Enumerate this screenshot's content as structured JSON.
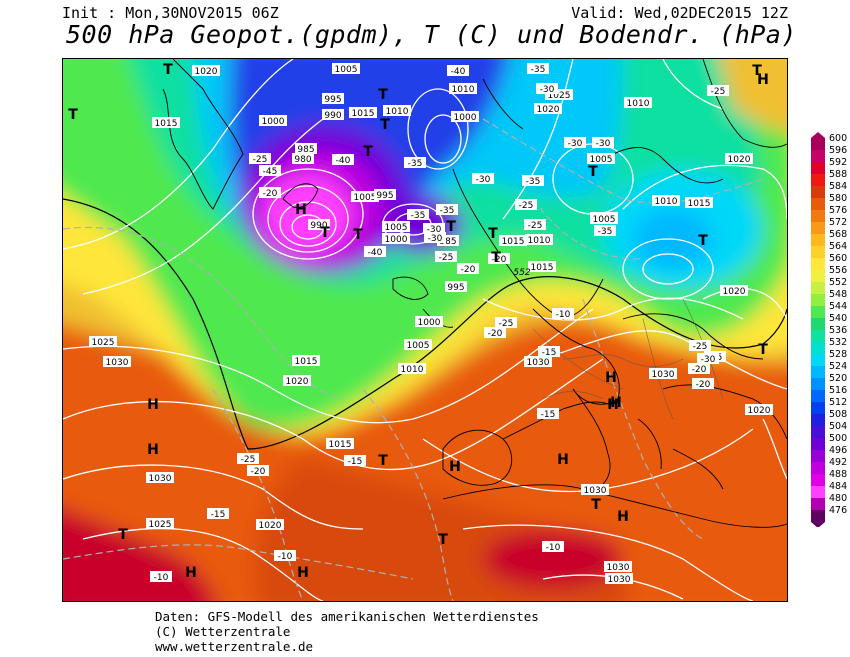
{
  "header": {
    "init": "Init : Mon,30NOV2015 06Z",
    "valid": "Valid: Wed,02DEC2015 12Z",
    "title": "500 hPa Geopot.(gpdm), T (C) und Bodendr. (hPa)"
  },
  "footer": {
    "line1": "Daten: GFS-Modell des amerikanischen Wetterdienstes",
    "line2": "(C) Wetterzentrale",
    "line3": "www.wetterzentrale.de"
  },
  "colorbar": {
    "labels": [
      "600",
      "596",
      "592",
      "588",
      "584",
      "580",
      "576",
      "572",
      "568",
      "564",
      "560",
      "556",
      "552",
      "548",
      "544",
      "540",
      "536",
      "532",
      "528",
      "524",
      "520",
      "516",
      "512",
      "508",
      "504",
      "500",
      "496",
      "492",
      "488",
      "484",
      "480",
      "476"
    ],
    "colors": [
      "#a8005a",
      "#c8006a",
      "#e0002a",
      "#f01810",
      "#d83a0a",
      "#e85a0a",
      "#f07a10",
      "#f89a18",
      "#ffb81e",
      "#ffd02a",
      "#ffe63a",
      "#f0f040",
      "#c8f040",
      "#90f040",
      "#50e850",
      "#20d870",
      "#10e0a0",
      "#00e0d0",
      "#00d8f8",
      "#00b8ff",
      "#0090ff",
      "#0068ff",
      "#0040f0",
      "#2020e0",
      "#4810d8",
      "#7000d8",
      "#9800d8",
      "#c000e0",
      "#e000e8",
      "#ff40ff",
      "#b000b0",
      "#600060"
    ]
  },
  "map": {
    "pressure_labels": [
      {
        "text": "1020"
      },
      {
        "text": "1005"
      },
      {
        "text": "1015"
      },
      {
        "text": "1000"
      },
      {
        "text": "995"
      },
      {
        "text": "990"
      },
      {
        "text": "1015"
      },
      {
        "text": "1010"
      },
      {
        "text": "985"
      },
      {
        "text": "980"
      },
      {
        "text": "1000"
      },
      {
        "text": "1010"
      },
      {
        "text": "1025"
      },
      {
        "text": "1020"
      },
      {
        "text": "1005"
      },
      {
        "text": "995"
      },
      {
        "text": "990"
      },
      {
        "text": "985"
      },
      {
        "text": "1005"
      },
      {
        "text": "1000"
      },
      {
        "text": "1010"
      },
      {
        "text": "1015"
      },
      {
        "text": "1005"
      },
      {
        "text": "1020"
      },
      {
        "text": "1010"
      },
      {
        "text": "1015"
      },
      {
        "text": "1000"
      },
      {
        "text": "1005"
      },
      {
        "text": "1020"
      },
      {
        "text": "1010"
      },
      {
        "text": "1025"
      },
      {
        "text": "1030"
      },
      {
        "text": "1015"
      },
      {
        "text": "1020"
      },
      {
        "text": "1015"
      },
      {
        "text": "1030"
      },
      {
        "text": "1025"
      },
      {
        "text": "1020"
      },
      {
        "text": "1030"
      },
      {
        "text": "1030"
      },
      {
        "text": "1030"
      },
      {
        "text": "1020"
      },
      {
        "text": "1030"
      },
      {
        "text": "1005"
      },
      {
        "text": "1010"
      },
      {
        "text": "1000"
      },
      {
        "text": "995"
      },
      {
        "text": "1015"
      },
      {
        "text": "1030"
      }
    ],
    "temp_labels": [
      {
        "text": "-40"
      },
      {
        "text": "-35"
      },
      {
        "text": "-30"
      },
      {
        "text": "-25"
      },
      {
        "text": "-30"
      },
      {
        "text": "-35"
      },
      {
        "text": "-40"
      },
      {
        "text": "-45"
      },
      {
        "text": "-35"
      },
      {
        "text": "-30"
      },
      {
        "text": "-25"
      },
      {
        "text": "-20"
      },
      {
        "text": "-40"
      },
      {
        "text": "-35"
      },
      {
        "text": "-30"
      },
      {
        "text": "-25"
      },
      {
        "text": "-20"
      },
      {
        "text": "-35"
      },
      {
        "text": "-30"
      },
      {
        "text": "-25"
      },
      {
        "text": "-35"
      },
      {
        "text": "-30"
      },
      {
        "text": "-25"
      },
      {
        "text": "-20"
      },
      {
        "text": "-25"
      },
      {
        "text": "-20"
      },
      {
        "text": "-15"
      },
      {
        "text": "-15"
      },
      {
        "text": "-10"
      },
      {
        "text": "-10"
      },
      {
        "text": "-15"
      },
      {
        "text": "-25"
      },
      {
        "text": "-20"
      },
      {
        "text": "-15"
      },
      {
        "text": "-10"
      },
      {
        "text": "-25"
      },
      {
        "text": "-20"
      },
      {
        "text": "-20"
      },
      {
        "text": "-25"
      },
      {
        "text": "-30"
      },
      {
        "text": "-10"
      }
    ],
    "geo_labels": [
      {
        "text": "552"
      },
      {
        "text": "528"
      },
      {
        "text": "508"
      }
    ],
    "pressure_centers": [
      {
        "type": "H"
      },
      {
        "type": "H"
      },
      {
        "type": "H"
      },
      {
        "type": "H"
      },
      {
        "type": "H"
      },
      {
        "type": "H"
      },
      {
        "type": "H"
      },
      {
        "type": "H"
      },
      {
        "type": "H"
      },
      {
        "type": "H"
      },
      {
        "type": "H"
      },
      {
        "type": "H"
      },
      {
        "type": "T"
      },
      {
        "type": "T"
      },
      {
        "type": "T"
      },
      {
        "type": "T"
      },
      {
        "type": "T"
      },
      {
        "type": "T"
      },
      {
        "type": "T"
      },
      {
        "type": "T"
      },
      {
        "type": "T"
      },
      {
        "type": "T"
      },
      {
        "type": "T"
      },
      {
        "type": "T"
      },
      {
        "type": "T"
      },
      {
        "type": "T"
      },
      {
        "type": "T"
      },
      {
        "type": "T"
      },
      {
        "type": "T"
      },
      {
        "type": "T"
      }
    ]
  }
}
